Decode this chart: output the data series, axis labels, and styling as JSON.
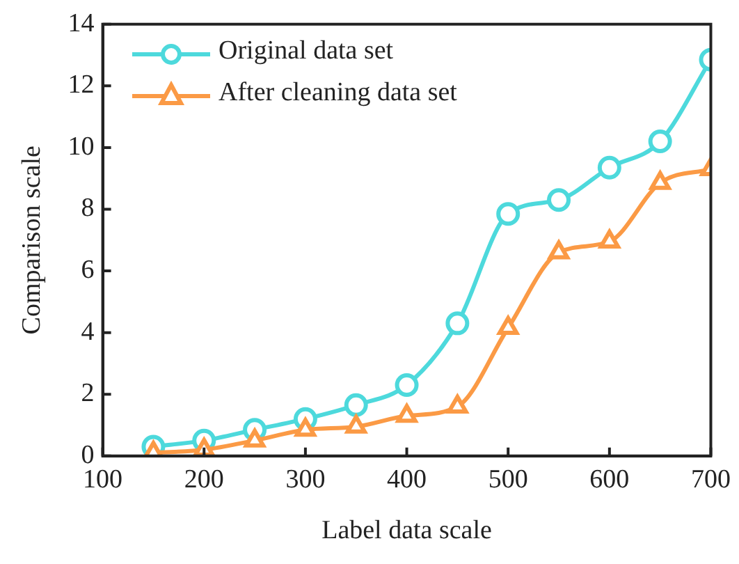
{
  "chart_data": {
    "type": "line",
    "xlabel": "Label data scale",
    "ylabel": "Comparison scale",
    "x": [
      150,
      200,
      250,
      300,
      350,
      400,
      450,
      500,
      550,
      600,
      650,
      700
    ],
    "series": [
      {
        "name": "Original data set",
        "color": "#4dd9dc",
        "marker": "circle",
        "values": [
          0.3,
          0.5,
          0.85,
          1.2,
          1.65,
          2.3,
          4.3,
          7.85,
          8.3,
          9.35,
          10.2,
          12.85
        ]
      },
      {
        "name": "After cleaning data set",
        "color": "#fb9a45",
        "marker": "triangle",
        "values": [
          0.1,
          0.2,
          0.5,
          0.85,
          0.95,
          1.3,
          1.6,
          4.15,
          6.6,
          6.95,
          8.85,
          9.3
        ]
      }
    ],
    "xlim": [
      100,
      700
    ],
    "xticks": [
      100,
      200,
      300,
      400,
      500,
      600,
      700
    ],
    "ylim": [
      0,
      14
    ],
    "yticks": [
      0,
      2,
      4,
      6,
      8,
      10,
      12,
      14
    ],
    "grid": false,
    "legend": "top left",
    "line_style": "solid"
  }
}
